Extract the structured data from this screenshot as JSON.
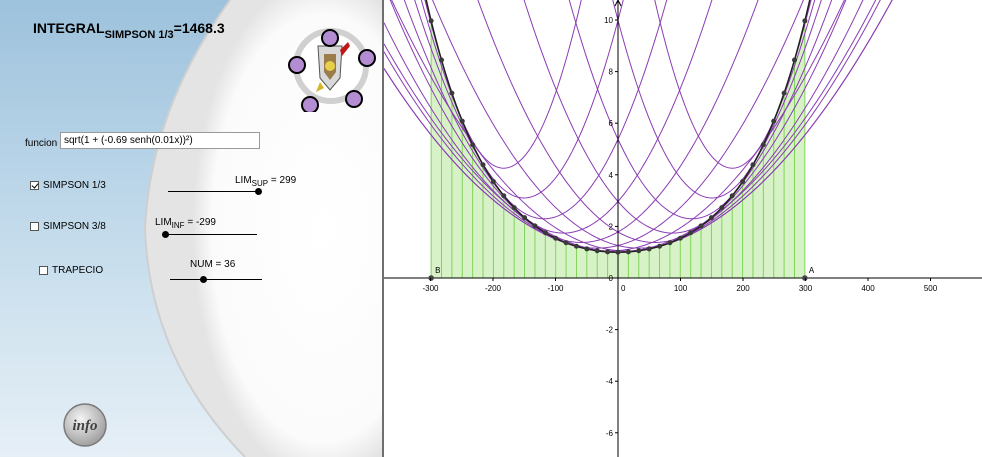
{
  "header": {
    "integral_prefix": "INTEGRAL",
    "integral_subscript": "SIMPSON 1/3",
    "integral_value": "=1468.3"
  },
  "function_field": {
    "label": "funcion",
    "value": "sqrt(1 + (-0.69 senh(0.01x))²)"
  },
  "checkboxes": [
    {
      "label": "SIMPSON 1/3",
      "checked": true
    },
    {
      "label": "SIMPSON 3/8",
      "checked": false
    },
    {
      "label": "TRAPECIO",
      "checked": false
    }
  ],
  "sliders": {
    "lim_sup": {
      "prefix": "LIM",
      "subscript": "SUP",
      "value_text": " = 299"
    },
    "lim_inf": {
      "prefix": "LIM",
      "subscript": "INF",
      "value_text": " = -299"
    },
    "num": {
      "text": "NUM = 36"
    }
  },
  "info_button": {
    "label": "info"
  },
  "graph": {
    "x_ticks": [
      "-300",
      "-200",
      "-100",
      "0",
      "100",
      "200",
      "300",
      "400",
      "500"
    ],
    "y_ticks": [
      "10",
      "8",
      "6",
      "4",
      "2",
      "0",
      "-2",
      "-4",
      "-6"
    ],
    "point_labels": {
      "left": "B",
      "right": "A"
    },
    "colors": {
      "curve": "#202020",
      "parabolas": "#8a3cb4",
      "fill": "#d8f2c8",
      "strip_lines": "#7fd35a",
      "points": "#3a3a3a",
      "logo_dots": "#b48cd2"
    }
  }
}
